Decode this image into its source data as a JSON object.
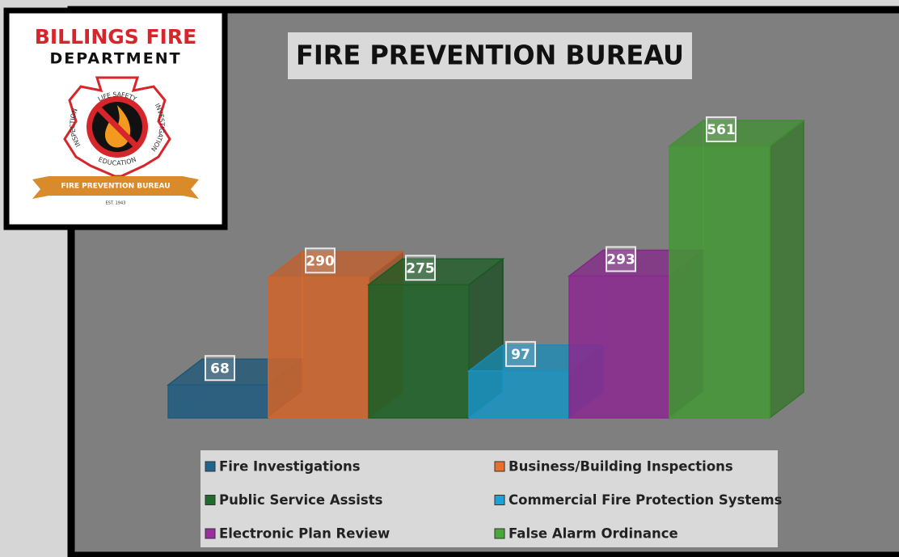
{
  "logo": {
    "line1": "BILLINGS FIRE",
    "line2": "DEPARTMENT",
    "top_arc": "LIFE SAFETY",
    "left_arc": "INSPECTION",
    "right_arc": "INVESTIGATION",
    "bottom_arc": "EDUCATION",
    "banner": "FIRE PREVENTION BUREAU",
    "est": "EST. 1943"
  },
  "chart_data": {
    "type": "bar",
    "title": "FIRE PREVENTION BUREAU",
    "categories": [
      "Fire Investigations",
      "Business/Building Inspections",
      "Public Service Assists",
      "Commercial Fire Protection Systems",
      "Electronic Plan Review",
      "False Alarm Ordinance"
    ],
    "values": [
      68,
      290,
      275,
      97,
      293,
      561
    ],
    "colors": [
      "#22658c",
      "#e8702f",
      "#1f6b2a",
      "#1aa3d8",
      "#9a2da0",
      "#4aa83a"
    ]
  }
}
